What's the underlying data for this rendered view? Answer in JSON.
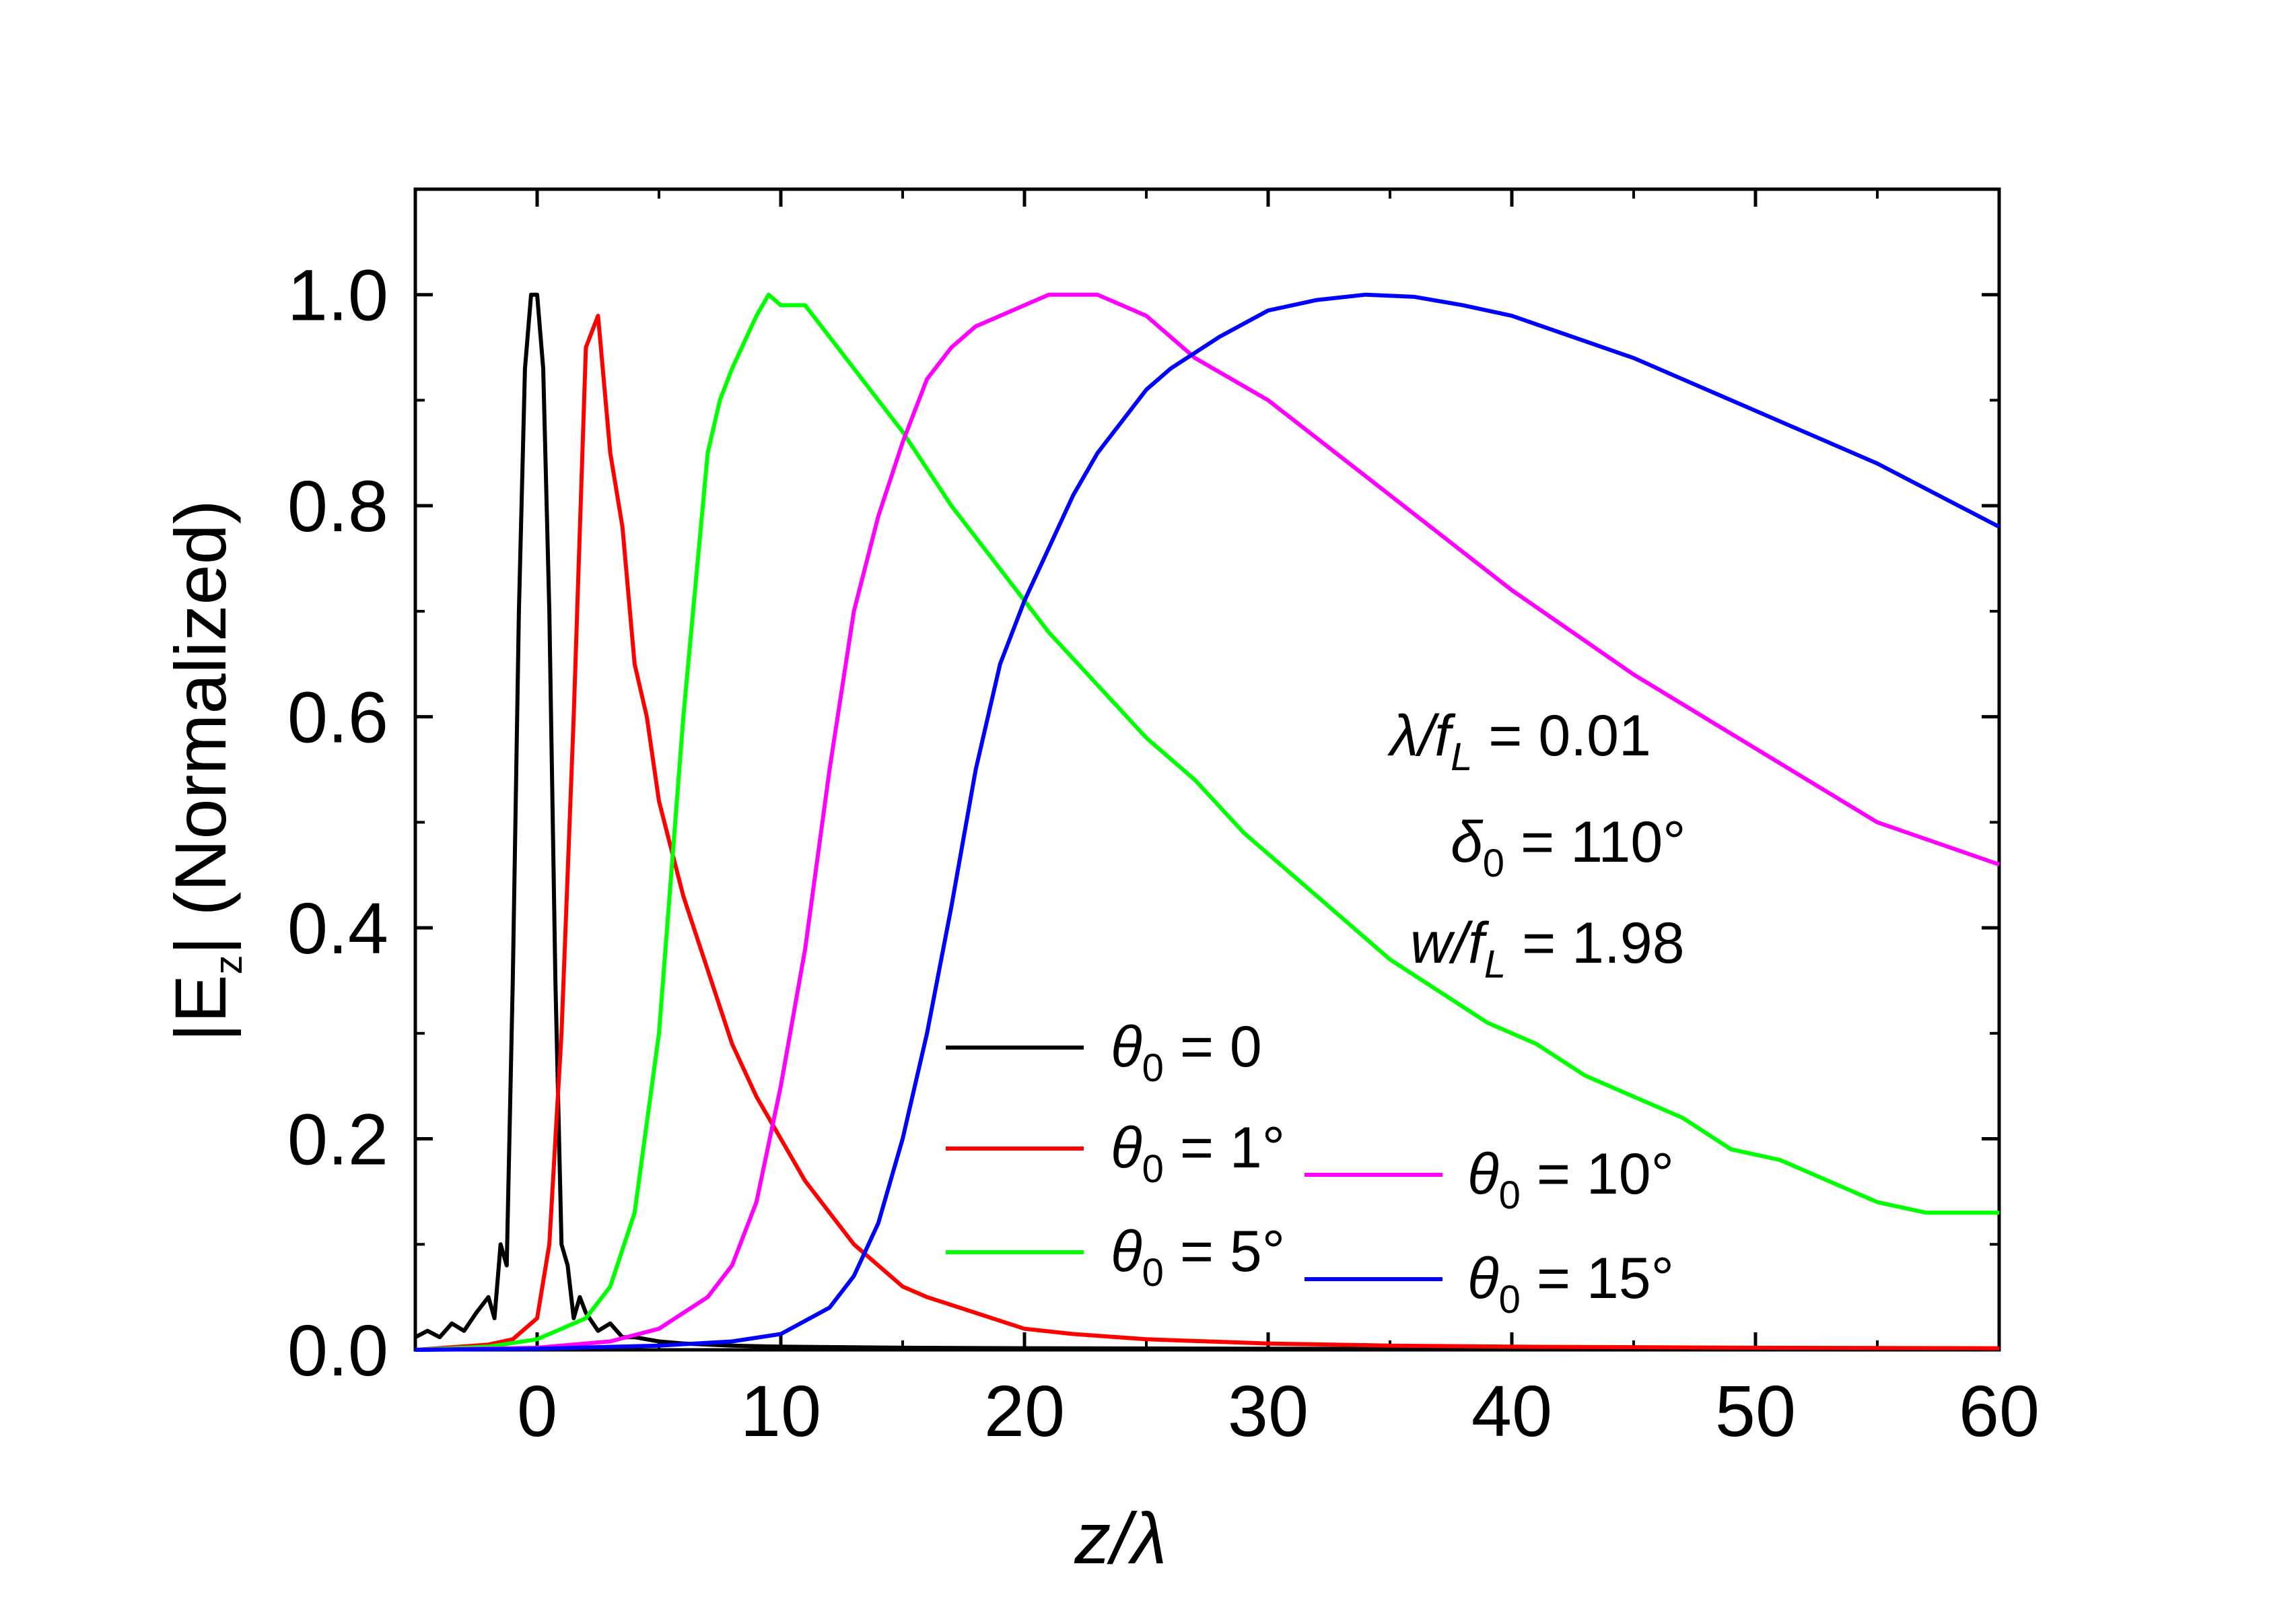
{
  "chart_data": {
    "type": "line",
    "title": "",
    "xlabel": "z/λ",
    "ylabel_prefix": "|E",
    "ylabel_sub": "z",
    "ylabel_suffix": "| (Normalized)",
    "xlim": [
      -5,
      60
    ],
    "ylim": [
      0,
      1.1
    ],
    "xticks": [
      0,
      10,
      20,
      30,
      40,
      50,
      60
    ],
    "xtick_labels": [
      "0",
      "10",
      "20",
      "30",
      "40",
      "50",
      "60"
    ],
    "yticks": [
      0.0,
      0.2,
      0.4,
      0.6,
      0.8,
      1.0
    ],
    "ytick_labels": [
      "0.0",
      "0.2",
      "0.4",
      "0.6",
      "0.8",
      "1.0"
    ],
    "grid": false,
    "series": [
      {
        "name": "θ0 = 0",
        "legend_symbol": "θ",
        "legend_sub": "0",
        "legend_value": " = 0",
        "color": "#000000",
        "x": [
          -5,
          -4.5,
          -4,
          -3.5,
          -3,
          -2.5,
          -2,
          -1.75,
          -1.5,
          -1.25,
          -1.0,
          -0.75,
          -0.5,
          -0.25,
          0,
          0.25,
          0.5,
          0.75,
          1.0,
          1.25,
          1.5,
          1.75,
          2,
          2.5,
          3,
          3.5,
          4,
          5,
          6,
          8,
          10,
          15,
          20,
          30,
          40,
          50,
          60
        ],
        "y": [
          0.012,
          0.018,
          0.012,
          0.025,
          0.018,
          0.035,
          0.05,
          0.03,
          0.1,
          0.08,
          0.35,
          0.7,
          0.93,
          1.0,
          1.0,
          0.93,
          0.7,
          0.35,
          0.1,
          0.08,
          0.03,
          0.05,
          0.035,
          0.018,
          0.025,
          0.012,
          0.012,
          0.008,
          0.006,
          0.004,
          0.003,
          0.002,
          0.0015,
          0.001,
          0.0008,
          0.0006,
          0.0005
        ]
      },
      {
        "name": "θ0 = 1°",
        "legend_symbol": "θ",
        "legend_sub": "0",
        "legend_value": " = 1°",
        "color": "#ff0000",
        "x": [
          -5,
          -2,
          -1,
          0,
          0.5,
          1,
          1.5,
          2,
          2.5,
          3,
          3.5,
          4,
          4.5,
          5,
          6,
          7,
          8,
          9,
          10,
          11,
          12,
          13,
          14,
          15,
          16,
          18,
          20,
          22,
          25,
          30,
          35,
          40,
          50,
          60
        ],
        "y": [
          0.0,
          0.005,
          0.01,
          0.03,
          0.1,
          0.3,
          0.6,
          0.95,
          0.98,
          0.85,
          0.78,
          0.65,
          0.6,
          0.52,
          0.43,
          0.36,
          0.29,
          0.24,
          0.2,
          0.16,
          0.13,
          0.1,
          0.08,
          0.06,
          0.05,
          0.035,
          0.02,
          0.015,
          0.01,
          0.006,
          0.004,
          0.003,
          0.002,
          0.0015
        ]
      },
      {
        "name": "θ0 = 5°",
        "legend_symbol": "θ",
        "legend_sub": "0",
        "legend_value": " = 5°",
        "color": "#00ff00",
        "x": [
          -5,
          -2,
          0,
          1,
          2,
          3,
          4,
          5,
          6,
          7,
          7.5,
          8,
          9,
          9.5,
          10,
          11,
          12,
          13,
          15,
          17,
          19,
          21,
          23,
          25,
          27,
          29,
          31,
          33,
          35,
          37,
          39,
          41,
          43,
          45,
          47,
          49,
          51,
          53,
          55,
          57,
          60
        ],
        "y": [
          0.0,
          0.003,
          0.01,
          0.02,
          0.03,
          0.06,
          0.13,
          0.3,
          0.6,
          0.85,
          0.9,
          0.93,
          0.98,
          1.0,
          0.99,
          0.99,
          0.96,
          0.93,
          0.87,
          0.8,
          0.74,
          0.68,
          0.63,
          0.58,
          0.54,
          0.49,
          0.45,
          0.41,
          0.37,
          0.34,
          0.31,
          0.29,
          0.26,
          0.24,
          0.22,
          0.19,
          0.18,
          0.16,
          0.14,
          0.13,
          0.13
        ]
      },
      {
        "name": "θ0 = 10°",
        "legend_symbol": "θ",
        "legend_sub": "0",
        "legend_value": " = 10°",
        "color": "#ff00ff",
        "x": [
          -5,
          0,
          3,
          5,
          7,
          8,
          9,
          10,
          11,
          12,
          13,
          14,
          15,
          16,
          17,
          18,
          19,
          20,
          21,
          22,
          23,
          24,
          25,
          27,
          30,
          35,
          40,
          45,
          50,
          55,
          60
        ],
        "y": [
          0.0,
          0.002,
          0.008,
          0.02,
          0.05,
          0.08,
          0.14,
          0.25,
          0.38,
          0.55,
          0.7,
          0.79,
          0.86,
          0.92,
          0.95,
          0.97,
          0.98,
          0.99,
          1.0,
          1.0,
          1.0,
          0.99,
          0.98,
          0.94,
          0.9,
          0.81,
          0.72,
          0.64,
          0.57,
          0.5,
          0.46
        ]
      },
      {
        "name": "θ0 = 15°",
        "legend_symbol": "θ",
        "legend_sub": "0",
        "legend_value": " = 15°",
        "color": "#0000ff",
        "x": [
          -5,
          0,
          5,
          8,
          10,
          12,
          13,
          14,
          15,
          16,
          17,
          18,
          19,
          20,
          21,
          22,
          23,
          24,
          25,
          26,
          28,
          30,
          32,
          34,
          36,
          38,
          40,
          45,
          50,
          55,
          60
        ],
        "y": [
          0.0,
          0.001,
          0.004,
          0.008,
          0.015,
          0.04,
          0.07,
          0.12,
          0.2,
          0.3,
          0.42,
          0.55,
          0.65,
          0.71,
          0.76,
          0.81,
          0.85,
          0.88,
          0.91,
          0.93,
          0.96,
          0.985,
          0.995,
          1.0,
          0.998,
          0.99,
          0.98,
          0.94,
          0.89,
          0.84,
          0.78
        ]
      }
    ],
    "legend_position": "bottom-center",
    "annotations": [
      {
        "name": "lambda-over-fL",
        "symbol": "λ/f",
        "sub": "L",
        "value": "  = 0.01"
      },
      {
        "name": "delta0",
        "symbol": "δ",
        "sub": "0",
        "value": " = 110°"
      },
      {
        "name": "w-over-fL",
        "symbol": "w/f",
        "sub": "L",
        "value": " = 1.98"
      }
    ]
  }
}
